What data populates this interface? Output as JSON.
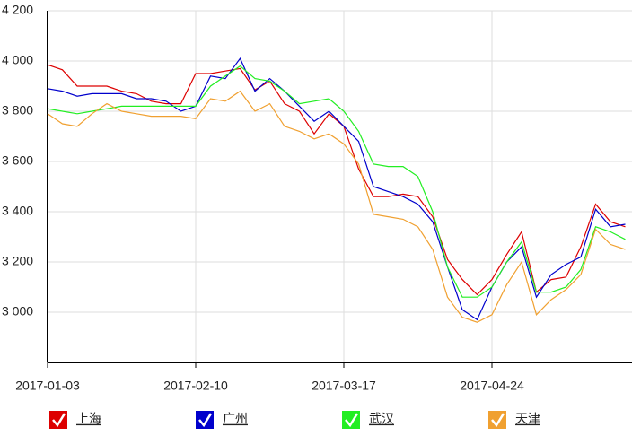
{
  "chart_data": {
    "type": "line",
    "categories": [
      "2017-01-03",
      null,
      null,
      null,
      null,
      null,
      null,
      null,
      null,
      null,
      "2017-02-10",
      null,
      null,
      null,
      null,
      null,
      null,
      null,
      null,
      null,
      "2017-03-17",
      null,
      null,
      null,
      null,
      null,
      null,
      null,
      null,
      null,
      "2017-04-24",
      null,
      null,
      null,
      null,
      null,
      null,
      null,
      null,
      null
    ],
    "series": [
      {
        "name": "上海",
        "color": "#dd0000",
        "values": [
          3985,
          3965,
          3900,
          3900,
          3900,
          3880,
          3870,
          3840,
          3830,
          3830,
          3950,
          3950,
          3960,
          3970,
          3885,
          3920,
          3830,
          3800,
          3710,
          3790,
          3740,
          3570,
          3460,
          3460,
          3470,
          3460,
          3380,
          3210,
          3130,
          3070,
          3130,
          3230,
          3320,
          3080,
          3130,
          3140,
          3260,
          3430,
          3360,
          3340
        ]
      },
      {
        "name": "广州",
        "color": "#0000cc",
        "values": [
          3890,
          3880,
          3860,
          3870,
          3870,
          3870,
          3850,
          3850,
          3840,
          3800,
          3820,
          3940,
          3930,
          4010,
          3880,
          3930,
          3880,
          3820,
          3760,
          3800,
          3740,
          3680,
          3500,
          3480,
          3460,
          3430,
          3360,
          3180,
          3010,
          2970,
          3100,
          3200,
          3260,
          3060,
          3150,
          3190,
          3220,
          3410,
          3340,
          3350
        ]
      },
      {
        "name": "武汉",
        "color": "#22ee22",
        "values": [
          3810,
          3800,
          3790,
          3800,
          3810,
          3820,
          3820,
          3820,
          3820,
          3820,
          3820,
          3900,
          3940,
          3980,
          3930,
          3920,
          3880,
          3830,
          3840,
          3850,
          3800,
          3720,
          3590,
          3580,
          3580,
          3540,
          3400,
          3180,
          3060,
          3060,
          3100,
          3200,
          3280,
          3080,
          3080,
          3100,
          3170,
          3340,
          3320,
          3290
        ]
      },
      {
        "name": "天津",
        "color": "#f0a030",
        "values": [
          3790,
          3750,
          3740,
          3790,
          3830,
          3800,
          3790,
          3780,
          3780,
          3780,
          3770,
          3850,
          3840,
          3880,
          3800,
          3830,
          3740,
          3720,
          3690,
          3710,
          3670,
          3590,
          3390,
          3380,
          3370,
          3340,
          3250,
          3060,
          2980,
          2960,
          2990,
          3110,
          3200,
          2990,
          3050,
          3090,
          3150,
          3330,
          3270,
          3250
        ]
      }
    ],
    "ylim": [
      2800,
      4200
    ],
    "yticks": [
      {
        "value": 3000,
        "label": "3 000"
      },
      {
        "value": 3200,
        "label": "3 200"
      },
      {
        "value": 3400,
        "label": "3 400"
      },
      {
        "value": 3600,
        "label": "3 600"
      },
      {
        "value": 3800,
        "label": "3 800"
      },
      {
        "value": 4000,
        "label": "4 000"
      },
      {
        "value": 4200,
        "label": "4 200"
      }
    ],
    "grid": true
  }
}
